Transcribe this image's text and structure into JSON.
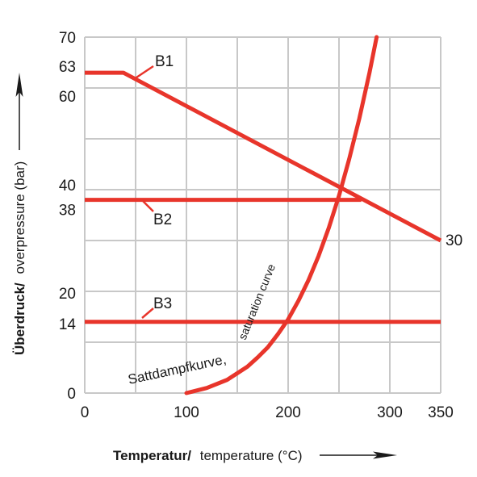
{
  "chart_data": {
    "type": "line",
    "xlim": [
      0,
      350
    ],
    "ylim": [
      0,
      70
    ],
    "grid": true,
    "x_ticks": [
      "0",
      "100",
      "200",
      "300",
      "350"
    ],
    "x_tick_values": [
      0,
      100,
      200,
      300,
      350
    ],
    "y_ticks": [
      "0",
      "14",
      "20",
      "38",
      "40",
      "60",
      "63",
      "70"
    ],
    "y_tick_values": [
      0,
      14,
      20,
      38,
      40,
      60,
      63,
      70
    ],
    "xlabel_bold": "Temperatur/",
    "xlabel_rest": "temperature (°C)",
    "ylabel_bold": "Überdruck/",
    "ylabel_rest": "overpressure (bar)",
    "series": [
      {
        "name": "B1",
        "color": "#e8352b",
        "x": [
          0,
          38,
          350
        ],
        "y": [
          63,
          63,
          30
        ]
      },
      {
        "name": "B2",
        "color": "#e8352b",
        "x": [
          0,
          272
        ],
        "y": [
          38,
          38
        ]
      },
      {
        "name": "B3",
        "color": "#e8352b",
        "x": [
          0,
          350
        ],
        "y": [
          14,
          14
        ]
      }
    ],
    "saturation_curve": {
      "label_de": "Sattdampfkurve,",
      "label_en": "saturation curve",
      "color": "#e8352b",
      "x": [
        100,
        120,
        140,
        160,
        170,
        180,
        190,
        200,
        210,
        220,
        230,
        240,
        250,
        260,
        270,
        280,
        287
      ],
      "y": [
        0,
        1,
        2.6,
        5.2,
        7,
        9,
        11.6,
        14.5,
        18.1,
        22.2,
        27,
        32.5,
        38.8,
        46,
        54,
        63,
        70
      ]
    },
    "end_label": "30"
  }
}
